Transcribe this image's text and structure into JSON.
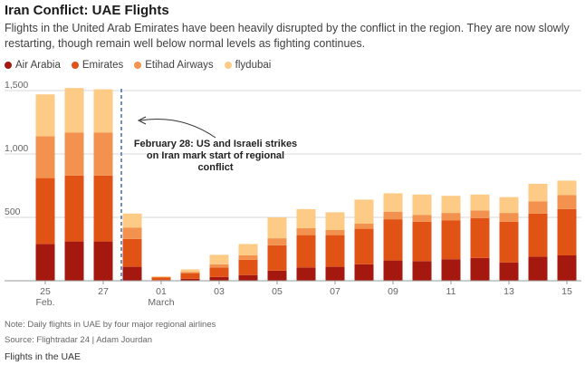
{
  "chart_data": {
    "type": "bar",
    "stacked": true,
    "title": "Iran Conflict: UAE Flights",
    "subtitle": "Flights in the United Arab Emirates have been heavily disrupted by the conflict in the region. They are now slowly restarting, though remain well below normal levels as fighting continues.",
    "xlabel": "",
    "ylabel": "",
    "ylim": [
      0,
      1500
    ],
    "yticks": [
      500,
      1000,
      1500
    ],
    "ytick_labels": [
      "500",
      "1,000",
      "1,500"
    ],
    "grid": true,
    "categories": [
      "Feb 25",
      "Feb 26",
      "Feb 27",
      "Feb 28",
      "Mar 01",
      "Mar 02",
      "Mar 03",
      "Mar 04",
      "Mar 05",
      "Mar 06",
      "Mar 07",
      "Mar 08",
      "Mar 09",
      "Mar 10",
      "Mar 11",
      "Mar 12",
      "Mar 13",
      "Mar 14",
      "Mar 15"
    ],
    "xtick_labels": [
      {
        "index": 0,
        "label": "25",
        "sublabel": "Feb."
      },
      {
        "index": 2,
        "label": "27",
        "sublabel": ""
      },
      {
        "index": 4,
        "label": "01",
        "sublabel": "March"
      },
      {
        "index": 6,
        "label": "03",
        "sublabel": ""
      },
      {
        "index": 8,
        "label": "05",
        "sublabel": ""
      },
      {
        "index": 10,
        "label": "07",
        "sublabel": ""
      },
      {
        "index": 12,
        "label": "09",
        "sublabel": ""
      },
      {
        "index": 14,
        "label": "11",
        "sublabel": ""
      },
      {
        "index": 16,
        "label": "13",
        "sublabel": ""
      },
      {
        "index": 18,
        "label": "15",
        "sublabel": ""
      }
    ],
    "series": [
      {
        "name": "Air Arabia",
        "color": "#a5180f",
        "values": [
          290,
          310,
          310,
          110,
          5,
          15,
          30,
          45,
          80,
          105,
          110,
          130,
          160,
          155,
          170,
          180,
          145,
          190,
          200
        ]
      },
      {
        "name": "Emirates",
        "color": "#e05315",
        "values": [
          520,
          520,
          520,
          220,
          20,
          45,
          75,
          120,
          200,
          255,
          250,
          280,
          325,
          310,
          305,
          315,
          320,
          340,
          365
        ]
      },
      {
        "name": "Etihad Airways",
        "color": "#f2924e",
        "values": [
          330,
          340,
          340,
          90,
          5,
          10,
          25,
          35,
          55,
          55,
          40,
          40,
          60,
          55,
          60,
          60,
          70,
          95,
          110
        ]
      },
      {
        "name": "flydubai",
        "color": "#fdcb86",
        "values": [
          330,
          350,
          340,
          110,
          5,
          20,
          75,
          90,
          165,
          150,
          140,
          190,
          145,
          160,
          135,
          125,
          125,
          140,
          115
        ]
      }
    ],
    "annotation": {
      "index": 3,
      "lines": [
        "February 28: US and Israeli strikes",
        "on Iran mark start of regional",
        "conflict"
      ]
    }
  },
  "note": "Note: Daily flights in UAE by four major regional airlines",
  "source": "Source: Flightradar 24 | Adam Jourdan",
  "footer": "Flights in the UAE"
}
